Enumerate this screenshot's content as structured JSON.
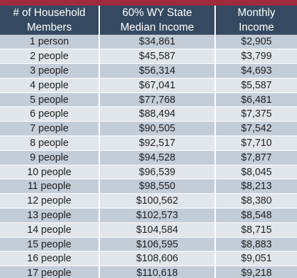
{
  "table": {
    "headers": [
      [
        "# of Household",
        "Members"
      ],
      [
        "60% WY State",
        "Median Income"
      ],
      [
        "Monthly",
        "Income"
      ]
    ],
    "rows": [
      [
        "1 person",
        "$34,861",
        "$2,905"
      ],
      [
        "2 people",
        "$45,587",
        "$3,799"
      ],
      [
        "3 people",
        "$56,314",
        "$4,693"
      ],
      [
        "4 people",
        "$67,041",
        "$5,587"
      ],
      [
        "5 people",
        "$77,768",
        "$6,481"
      ],
      [
        "6 people",
        "$88,494",
        "$7,375"
      ],
      [
        "7 people",
        "$90,505",
        "$7,542"
      ],
      [
        "8 people",
        "$92,517",
        "$7,710"
      ],
      [
        "9 people",
        "$94,528",
        "$7,877"
      ],
      [
        "10 people",
        "$96,539",
        "$8,045"
      ],
      [
        "11 people",
        "$98,550",
        "$8,213"
      ],
      [
        "12 people",
        "$100,562",
        "$8,380"
      ],
      [
        "13 people",
        "$102,573",
        "$8,548"
      ],
      [
        "14 people",
        "$104,584",
        "$8,715"
      ],
      [
        "15 people",
        "$106,595",
        "$8,883"
      ],
      [
        "16 people",
        "$108,606",
        "$9,051"
      ],
      [
        "17 people",
        "$110,618",
        "$9,218"
      ]
    ]
  },
  "colors": {
    "accent_bar": "#9e2b3c",
    "header_background": "#354a60",
    "row_dark": "#c3cdd8",
    "row_light": "#e1e6ec"
  }
}
